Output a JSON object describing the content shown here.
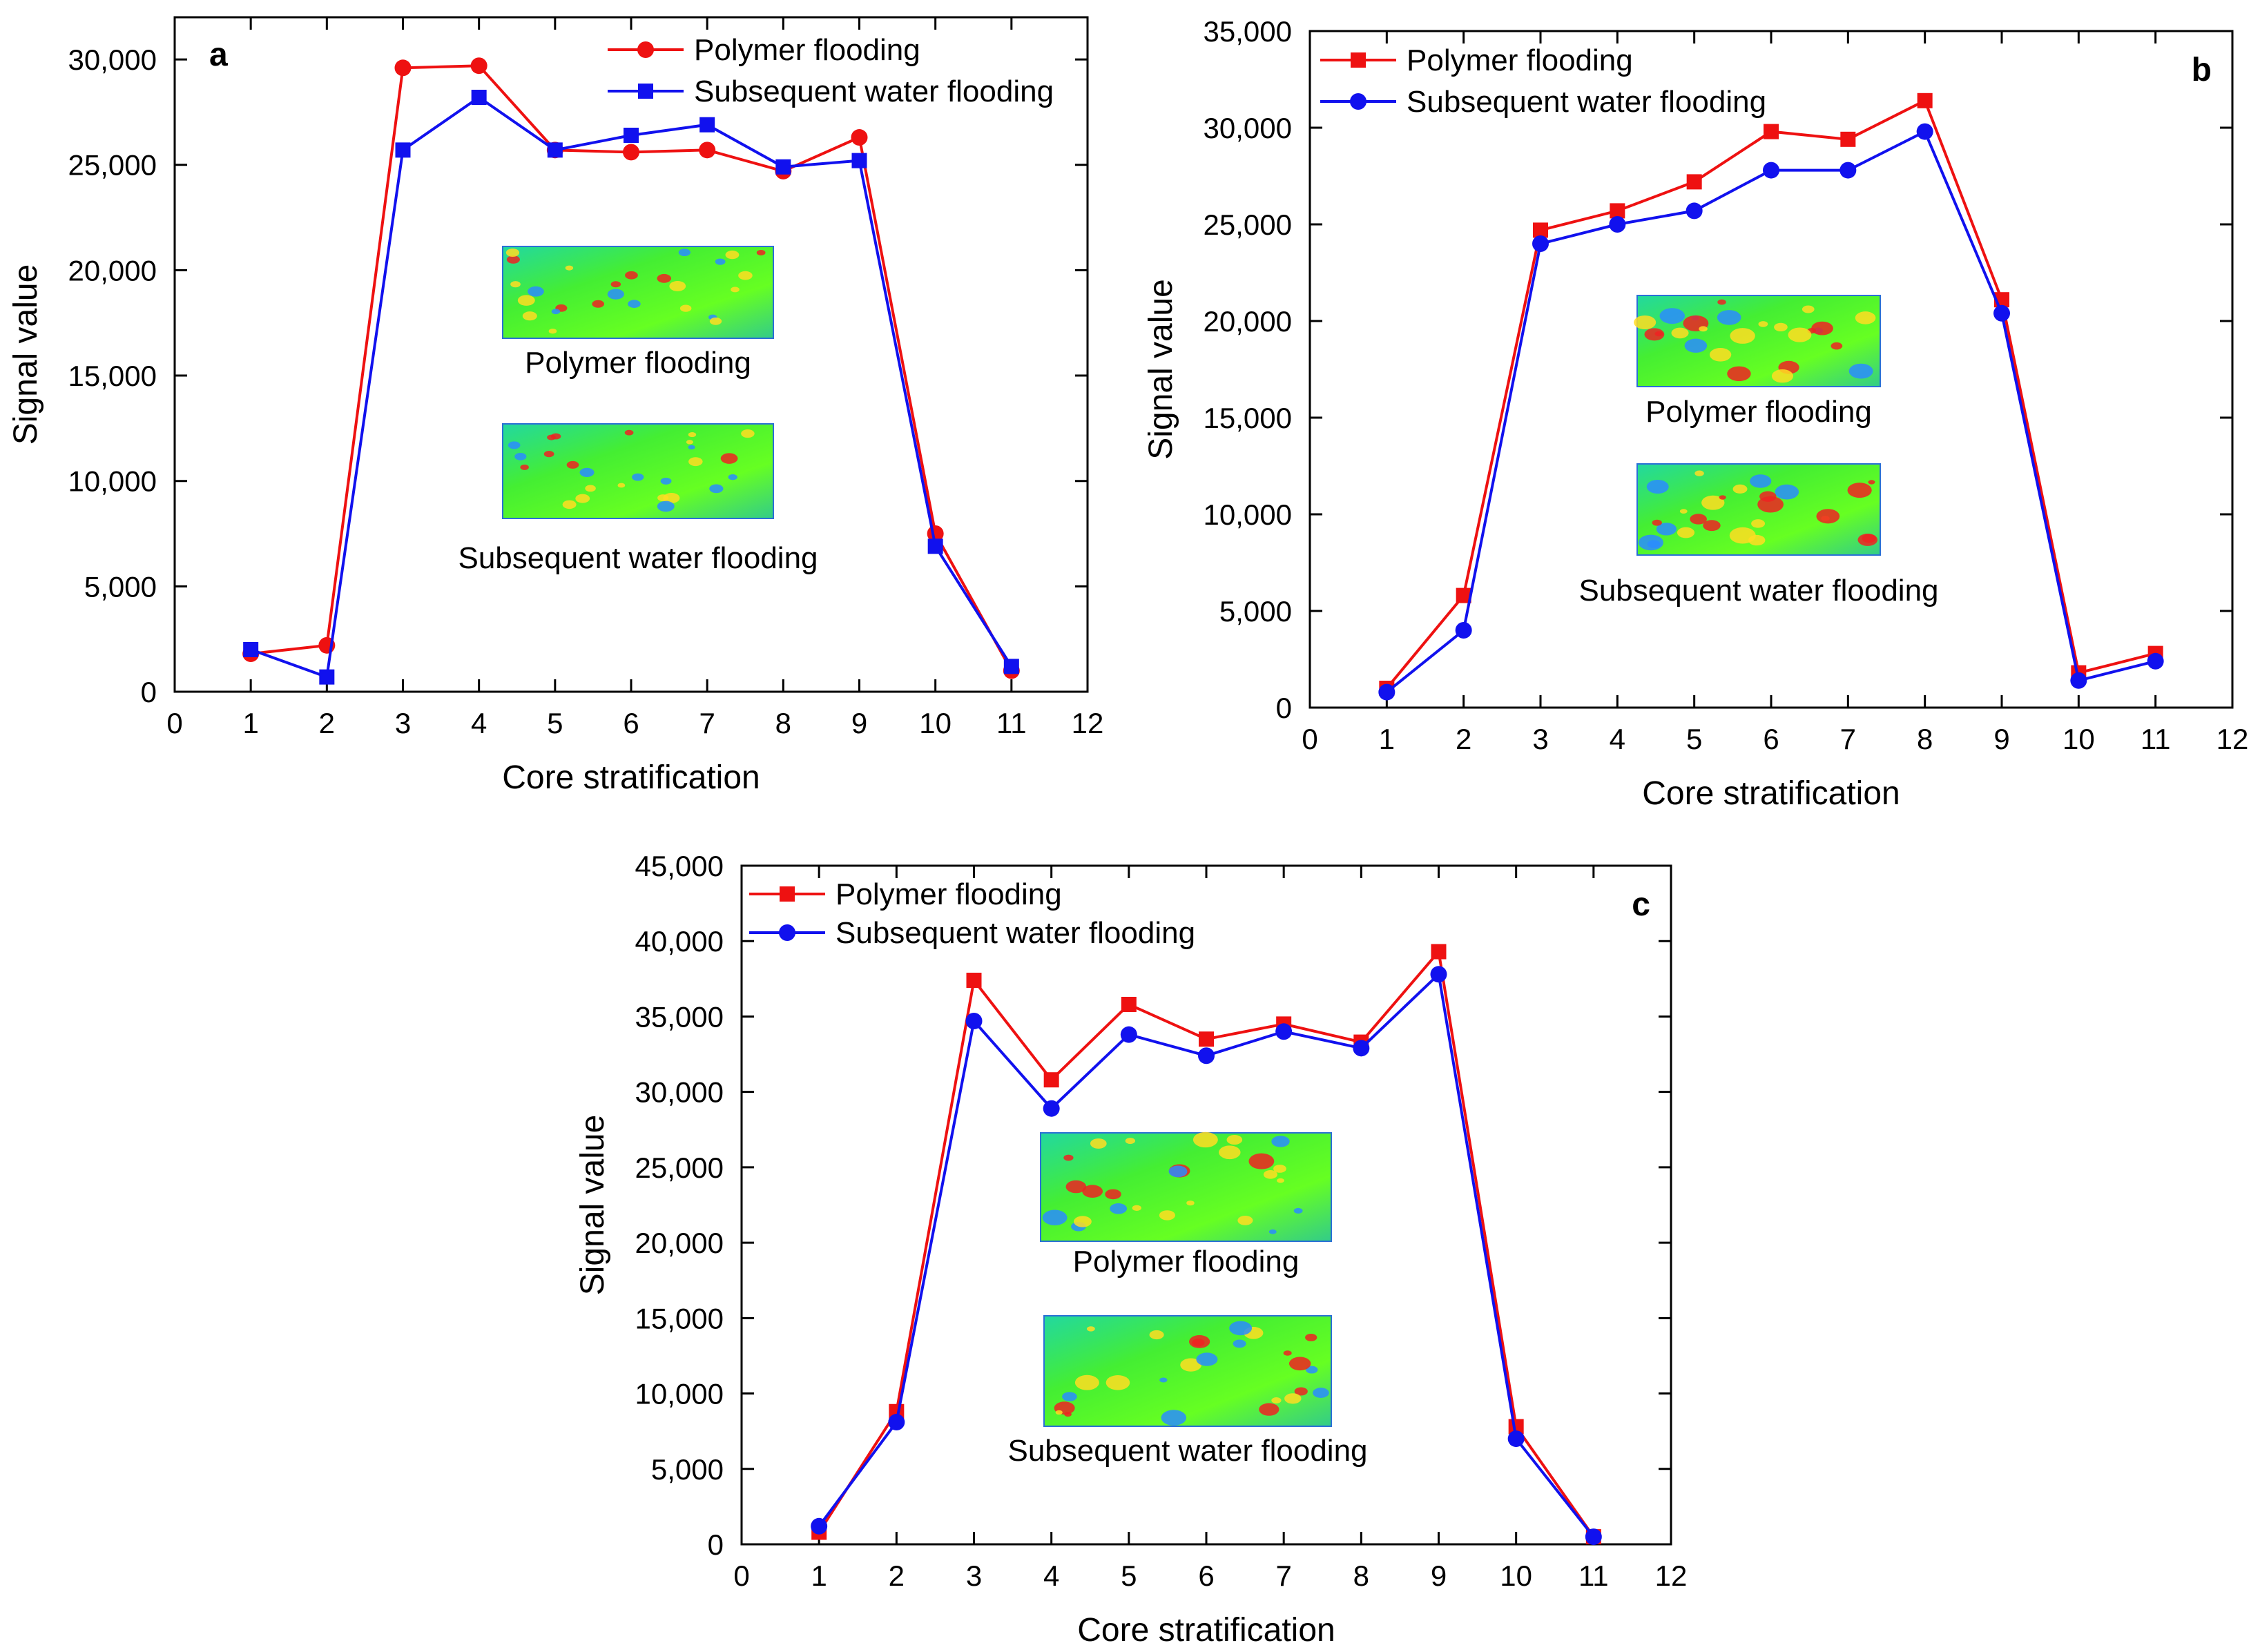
{
  "colors": {
    "polymer": "#ee1111",
    "water": "#1111ee",
    "axis": "#000000",
    "inset_bg": "#33ee33"
  },
  "chart_data": [
    {
      "type": "line",
      "panel": "a",
      "xlabel": "Core stratification",
      "ylabel": "Signal value",
      "xlim": [
        0,
        12
      ],
      "ylim": [
        0,
        32000
      ],
      "x_ticks": [
        "0",
        "1",
        "2",
        "3",
        "4",
        "5",
        "6",
        "7",
        "8",
        "9",
        "10",
        "11",
        "12"
      ],
      "y_ticks": [
        "0",
        "5,000",
        "10,000",
        "15,000",
        "20,000",
        "25,000",
        "30,000"
      ],
      "y_tick_values": [
        0,
        5000,
        10000,
        15000,
        20000,
        25000,
        30000
      ],
      "x": [
        1,
        2,
        3,
        4,
        5,
        6,
        7,
        8,
        9,
        10,
        11
      ],
      "series": [
        {
          "name": "Polymer flooding",
          "color_key": "polymer",
          "marker": "circle",
          "values": [
            1800,
            2200,
            29600,
            29700,
            25700,
            25600,
            25700,
            24700,
            26300,
            7500,
            1000
          ]
        },
        {
          "name": "Subsequent water flooding",
          "color_key": "water",
          "marker": "square",
          "values": [
            2000,
            700,
            25700,
            28200,
            25700,
            26400,
            26900,
            24900,
            25200,
            6900,
            1200
          ]
        }
      ],
      "legend_position": "top-right",
      "insets": [
        {
          "caption": "Polymer flooding"
        },
        {
          "caption": "Subsequent water flooding"
        }
      ]
    },
    {
      "type": "line",
      "panel": "b",
      "xlabel": "Core stratification",
      "ylabel": "Signal value",
      "xlim": [
        0,
        12
      ],
      "ylim": [
        0,
        35000
      ],
      "x_ticks": [
        "0",
        "1",
        "2",
        "3",
        "4",
        "5",
        "6",
        "7",
        "8",
        "9",
        "10",
        "11",
        "12"
      ],
      "y_ticks": [
        "0",
        "5,000",
        "10,000",
        "15,000",
        "20,000",
        "25,000",
        "30,000",
        "35,000"
      ],
      "y_tick_values": [
        0,
        5000,
        10000,
        15000,
        20000,
        25000,
        30000,
        35000
      ],
      "x": [
        1,
        2,
        3,
        4,
        5,
        6,
        7,
        8,
        9,
        10,
        11
      ],
      "series": [
        {
          "name": "Polymer flooding",
          "color_key": "polymer",
          "marker": "square",
          "values": [
            1000,
            5800,
            24700,
            25700,
            27200,
            29800,
            29400,
            31400,
            21100,
            1800,
            2800
          ]
        },
        {
          "name": "Subsequent water flooding",
          "color_key": "water",
          "marker": "circle",
          "values": [
            800,
            4000,
            24000,
            25000,
            25700,
            27800,
            27800,
            29800,
            20400,
            1400,
            2400
          ]
        }
      ],
      "legend_position": "top-left",
      "insets": [
        {
          "caption": "Polymer flooding"
        },
        {
          "caption": "Subsequent water flooding"
        }
      ]
    },
    {
      "type": "line",
      "panel": "c",
      "xlabel": "Core stratification",
      "ylabel": "Signal value",
      "xlim": [
        0,
        12
      ],
      "ylim": [
        0,
        45000
      ],
      "x_ticks": [
        "0",
        "1",
        "2",
        "3",
        "4",
        "5",
        "6",
        "7",
        "8",
        "9",
        "10",
        "11",
        "12"
      ],
      "y_ticks": [
        "0",
        "5,000",
        "10,000",
        "15,000",
        "20,000",
        "25,000",
        "30,000",
        "35,000",
        "40,000",
        "45,000"
      ],
      "y_tick_values": [
        0,
        5000,
        10000,
        15000,
        20000,
        25000,
        30000,
        35000,
        40000,
        45000
      ],
      "x": [
        1,
        2,
        3,
        4,
        5,
        6,
        7,
        8,
        9,
        10,
        11
      ],
      "series": [
        {
          "name": "Polymer flooding",
          "color_key": "polymer",
          "marker": "square",
          "values": [
            800,
            8800,
            37400,
            30800,
            35800,
            33500,
            34500,
            33300,
            39300,
            7800,
            500
          ]
        },
        {
          "name": "Subsequent water flooding",
          "color_key": "water",
          "marker": "circle",
          "values": [
            1200,
            8100,
            34700,
            28900,
            33800,
            32400,
            34000,
            32900,
            37800,
            7000,
            500
          ]
        }
      ],
      "legend_position": "top-left",
      "insets": [
        {
          "caption": "Polymer flooding"
        },
        {
          "caption": "Subsequent water flooding"
        }
      ]
    }
  ]
}
